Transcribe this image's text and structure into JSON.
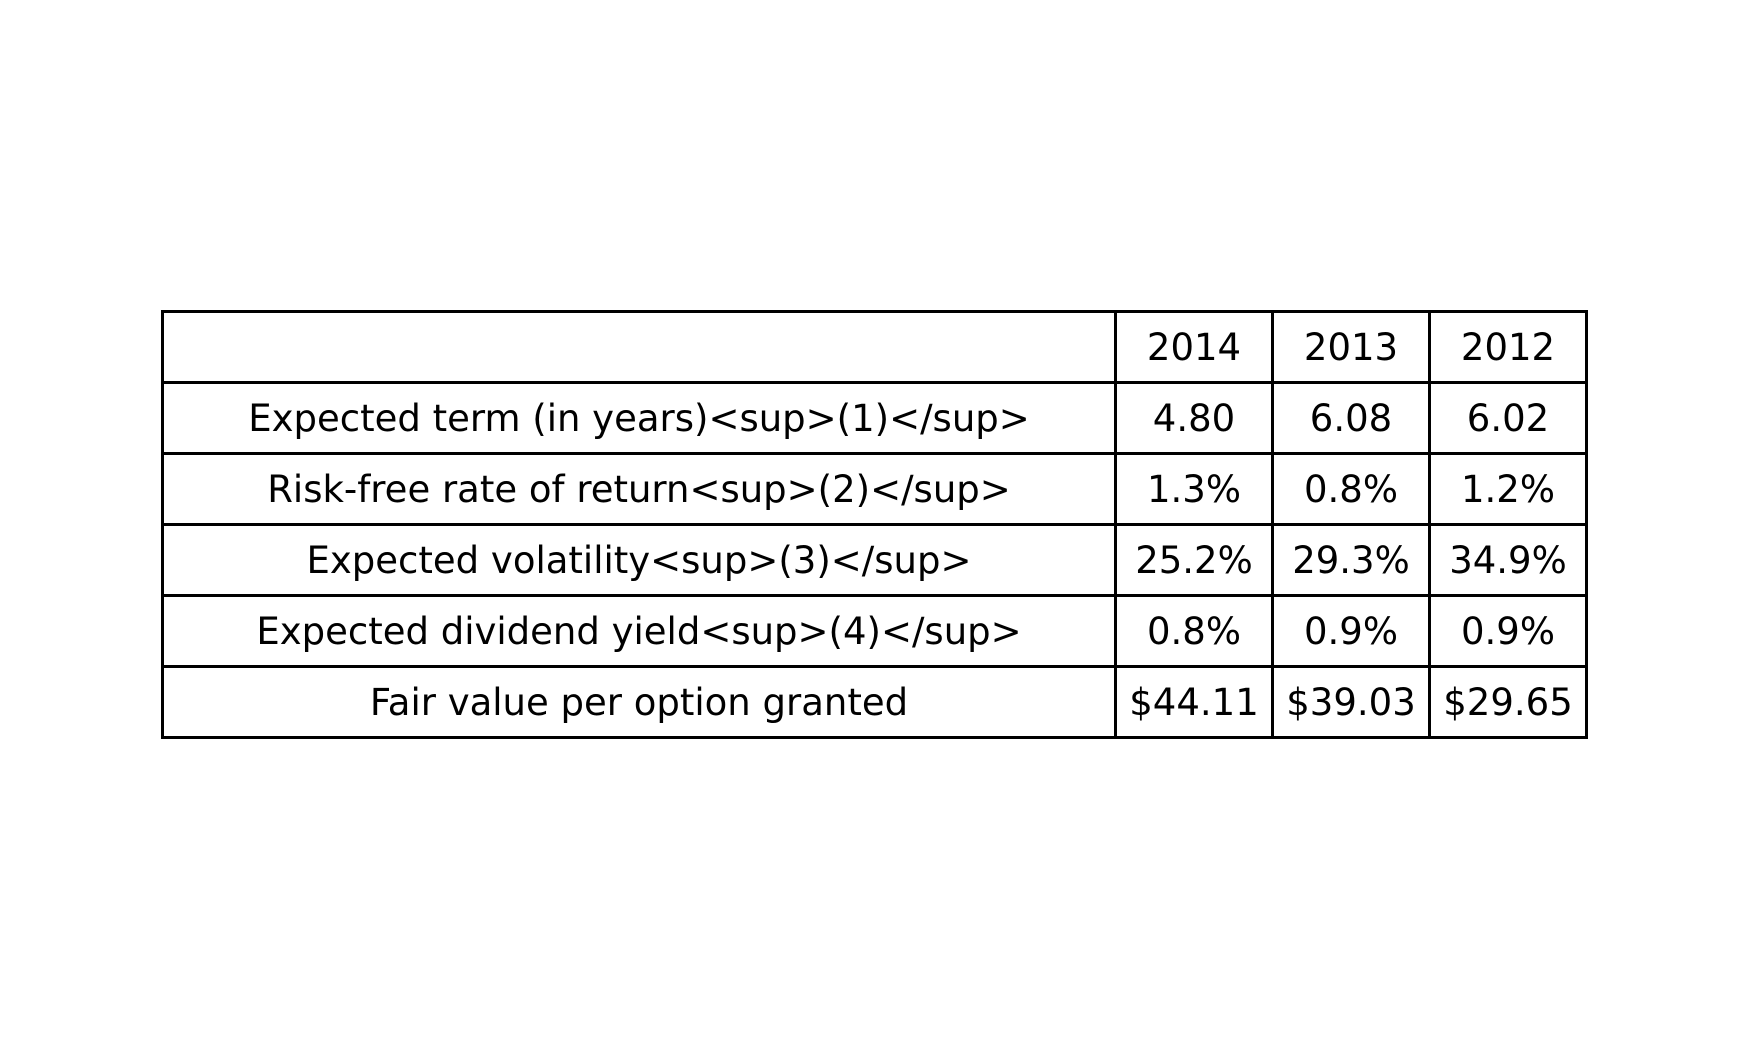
{
  "chart_data": {
    "type": "table",
    "columns": [
      "",
      "2014",
      "2013",
      "2012"
    ],
    "rows": [
      {
        "label": "Expected term (in years)<sup>(1)</sup>",
        "values": [
          "4.80",
          "6.08",
          "6.02"
        ]
      },
      {
        "label": "Risk-free rate of return<sup>(2)</sup>",
        "values": [
          "1.3%",
          "0.8%",
          "1.2%"
        ]
      },
      {
        "label": "Expected volatility<sup>(3)</sup>",
        "values": [
          "25.2%",
          "29.3%",
          "34.9%"
        ]
      },
      {
        "label": "Expected dividend yield<sup>(4)</sup>",
        "values": [
          "0.8%",
          "0.9%",
          "0.9%"
        ]
      },
      {
        "label": "Fair value per option granted",
        "values": [
          "$44.11",
          "$39.03",
          "$29.65"
        ]
      }
    ]
  }
}
